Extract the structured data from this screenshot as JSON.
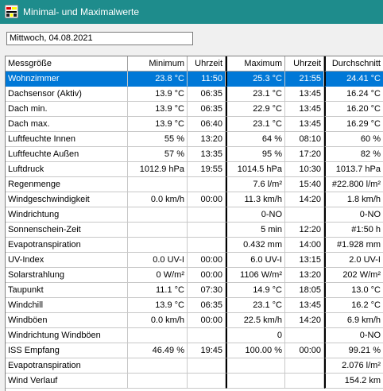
{
  "window": {
    "title": "Minimal- und Maximalwerte"
  },
  "date_field": {
    "value": "Mittwoch, 04.08.2021"
  },
  "colors": {
    "titlebar": "#1e8c8c",
    "selection": "#0078d7"
  },
  "table": {
    "headers": {
      "name": "Messgröße",
      "min": "Minimum",
      "min_time": "Uhrzeit",
      "max": "Maximum",
      "max_time": "Uhrzeit",
      "avg": "Durchschnitt"
    },
    "rows": [
      {
        "name": "Wohnzimmer",
        "min": "23.8 °C",
        "min_time": "11:50",
        "max": "25.3 °C",
        "max_time": "21:55",
        "avg": "24.41 °C",
        "selected": true
      },
      {
        "name": "Dachsensor (Aktiv)",
        "min": "13.9 °C",
        "min_time": "06:35",
        "max": "23.1 °C",
        "max_time": "13:45",
        "avg": "16.24 °C"
      },
      {
        "name": "Dach min.",
        "min": "13.9 °C",
        "min_time": "06:35",
        "max": "22.9 °C",
        "max_time": "13:45",
        "avg": "16.20 °C"
      },
      {
        "name": "Dach max.",
        "min": "13.9 °C",
        "min_time": "06:40",
        "max": "23.1 °C",
        "max_time": "13:45",
        "avg": "16.29 °C"
      },
      {
        "name": "Luftfeuchte Innen",
        "min": "55 %",
        "min_time": "13:20",
        "max": "64 %",
        "max_time": "08:10",
        "avg": "60 %"
      },
      {
        "name": "Luftfeuchte Außen",
        "min": "57 %",
        "min_time": "13:35",
        "max": "95 %",
        "max_time": "17:20",
        "avg": "82 %"
      },
      {
        "name": "Luftdruck",
        "min": "1012.9 hPa",
        "min_time": "19:55",
        "max": "1014.5 hPa",
        "max_time": "10:30",
        "avg": "1013.7 hPa"
      },
      {
        "name": "Regenmenge",
        "min": "",
        "min_time": "",
        "max": "7.6 l/m²",
        "max_time": "15:40",
        "avg": "#22.800 l/m²"
      },
      {
        "name": "Windgeschwindigkeit",
        "min": "0.0 km/h",
        "min_time": "00:00",
        "max": "11.3 km/h",
        "max_time": "14:20",
        "avg": "1.8 km/h"
      },
      {
        "name": "Windrichtung",
        "min": "",
        "min_time": "",
        "max": "0-NO",
        "max_time": "",
        "avg": "0-NO"
      },
      {
        "name": "Sonnenschein-Zeit",
        "min": "",
        "min_time": "",
        "max": "5 min",
        "max_time": "12:20",
        "avg": "#1:50 h"
      },
      {
        "name": "Evapotranspiration",
        "min": "",
        "min_time": "",
        "max": "0.432 mm",
        "max_time": "14:00",
        "avg": "#1.928 mm"
      },
      {
        "name": "UV-Index",
        "min": "0.0 UV-I",
        "min_time": "00:00",
        "max": "6.0 UV-I",
        "max_time": "13:15",
        "avg": "2.0 UV-I"
      },
      {
        "name": "Solarstrahlung",
        "min": "0 W/m²",
        "min_time": "00:00",
        "max": "1106 W/m²",
        "max_time": "13:20",
        "avg": "202 W/m²"
      },
      {
        "name": "Taupunkt",
        "min": "11.1 °C",
        "min_time": "07:30",
        "max": "14.9 °C",
        "max_time": "18:05",
        "avg": "13.0 °C"
      },
      {
        "name": "Windchill",
        "min": "13.9 °C",
        "min_time": "06:35",
        "max": "23.1 °C",
        "max_time": "13:45",
        "avg": "16.2 °C"
      },
      {
        "name": "Windböen",
        "min": "0.0 km/h",
        "min_time": "00:00",
        "max": "22.5 km/h",
        "max_time": "14:20",
        "avg": "6.9 km/h"
      },
      {
        "name": "Windrichtung Windböen",
        "min": "",
        "min_time": "",
        "max": "0",
        "max_time": "",
        "avg": "0-NO"
      },
      {
        "name": "ISS Empfang",
        "min": "46.49 %",
        "min_time": "19:45",
        "max": "100.00 %",
        "max_time": "00:00",
        "avg": "99.21 %"
      },
      {
        "name": "Evapotranspiration",
        "min": "",
        "min_time": "",
        "max": "",
        "max_time": "",
        "avg": "2.076 l/m²"
      },
      {
        "name": "Wind Verlauf",
        "min": "",
        "min_time": "",
        "max": "",
        "max_time": "",
        "avg": "154.2 km"
      }
    ]
  }
}
